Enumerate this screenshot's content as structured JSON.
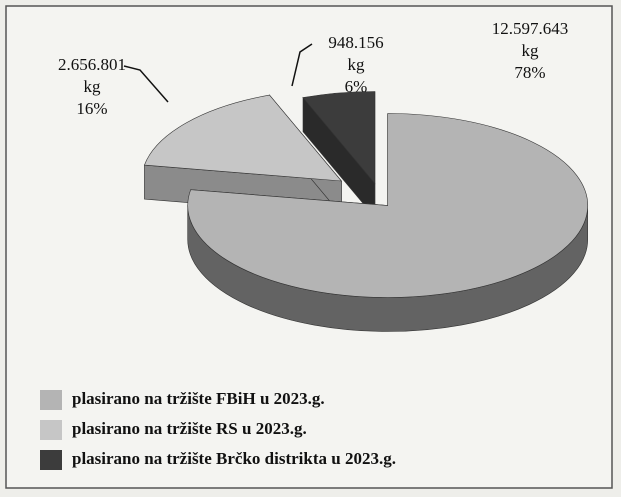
{
  "chart_data": {
    "type": "pie",
    "categories": [
      "plasirano na tržište FBiH u 2023.g.",
      "plasirano na tržište RS u 2023.g.",
      "plasirano na tržište Brčko distrikta u 2023.g."
    ],
    "values": [
      12597643,
      2656801,
      948156
    ],
    "value_labels": [
      "12.597.643",
      "2.656.801",
      "948.156"
    ],
    "unit": "kg",
    "percentages": [
      78,
      16,
      6
    ],
    "percentage_labels": [
      "78%",
      "16%",
      "6%"
    ],
    "colors": [
      "#b4b4b4",
      "#c6c6c6",
      "#3c3c3c"
    ],
    "legend": "bottom-left"
  }
}
